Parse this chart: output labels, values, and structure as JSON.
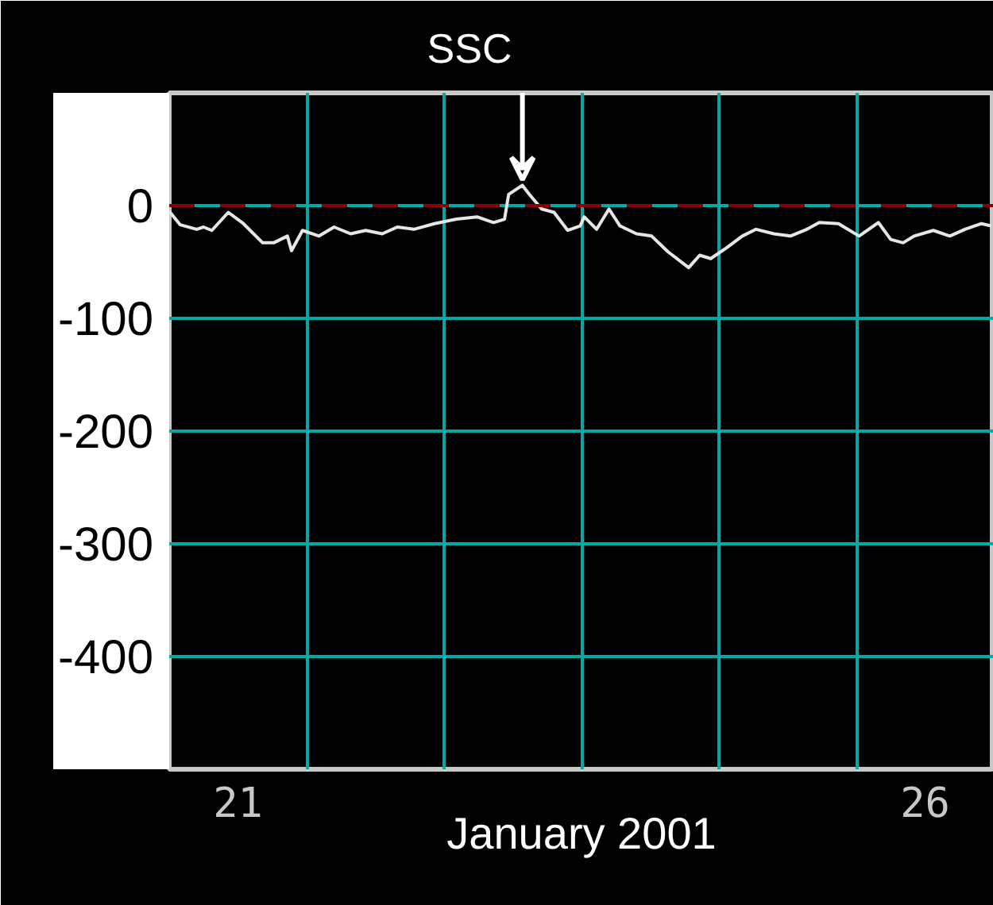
{
  "chart_data": {
    "type": "line",
    "xlabel": "January 2001",
    "x": [
      21.0,
      21.08,
      21.2,
      21.25,
      21.31,
      21.43,
      21.54,
      21.68,
      21.76,
      21.86,
      21.89,
      21.97,
      22.09,
      22.2,
      22.32,
      22.43,
      22.55,
      22.66,
      22.78,
      22.93,
      23.09,
      23.24,
      23.36,
      23.44,
      23.47,
      23.57,
      23.62,
      23.71,
      23.8,
      23.9,
      23.99,
      24.02,
      24.11,
      24.2,
      24.28,
      24.4,
      24.51,
      24.63,
      24.78,
      24.86,
      24.94,
      25.06,
      25.17,
      25.27,
      25.4,
      25.52,
      25.64,
      25.73,
      25.87,
      26.02,
      26.16,
      26.25,
      26.34,
      26.42,
      26.56,
      26.68,
      26.79,
      26.91,
      26.98
    ],
    "series": [
      {
        "color": "#e6e6e6",
        "values": [
          -5,
          -17,
          -21,
          -19,
          -22,
          -6,
          -16,
          -33,
          -33,
          -27,
          -40,
          -22,
          -27,
          -19,
          -25,
          -22,
          -25,
          -19,
          -21,
          -16,
          -12,
          -10,
          -15,
          -12,
          10,
          18,
          10,
          -3,
          -6,
          -22,
          -18,
          -10,
          -21,
          -3,
          -18,
          -25,
          -27,
          -41,
          -55,
          -44,
          -47,
          -37,
          -27,
          -21,
          -25,
          -27,
          -21,
          -15,
          -16,
          -27,
          -15,
          -30,
          -33,
          -27,
          -22,
          -27,
          -21,
          -16,
          -18
        ]
      }
    ],
    "xlim": [
      21,
      27
    ],
    "ylim": [
      -500,
      100
    ],
    "xticks": [
      {
        "value": 21,
        "label": null
      },
      {
        "value": 21.5,
        "label": "21"
      },
      {
        "value": 22,
        "label": null
      },
      {
        "value": 23,
        "label": null
      },
      {
        "value": 24,
        "label": null
      },
      {
        "value": 25,
        "label": null
      },
      {
        "value": 26,
        "label": null
      },
      {
        "value": 26.5,
        "label": "26"
      },
      {
        "value": 27,
        "label": null
      }
    ],
    "yticks": [
      0,
      -100,
      -200,
      -300,
      -400
    ],
    "ref_lines": [
      {
        "axis": "y",
        "value": 0,
        "color": "#8b0000",
        "line_style": "dashed"
      }
    ],
    "annotations": [
      {
        "text": "SSC",
        "x": 23.57,
        "y": 18
      }
    ],
    "grid": true,
    "marker": "none",
    "line_style": "solid"
  }
}
